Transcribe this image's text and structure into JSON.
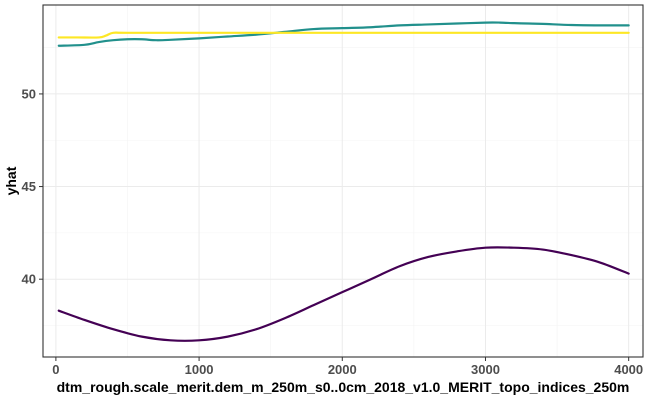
{
  "chart_data": {
    "type": "line",
    "xlabel": "dtm_rough.scale_merit.dem_m_250m_s0..0cm_2018_v1.0_MERIT_topo_indices_250m",
    "ylabel": "yhat",
    "xlim": [
      -90,
      4100
    ],
    "ylim": [
      35.8,
      54.8
    ],
    "x_ticks": [
      0,
      1000,
      2000,
      3000,
      4000
    ],
    "y_ticks": [
      40,
      45,
      50
    ],
    "grid": true,
    "legend": "none",
    "series": [
      {
        "color": "#440154",
        "x": [
          20,
          200,
          400,
          600,
          800,
          1000,
          1200,
          1400,
          1600,
          1800,
          2000,
          2200,
          2400,
          2600,
          2800,
          3000,
          3200,
          3400,
          3600,
          3800,
          4000
        ],
        "y": [
          38.3,
          37.8,
          37.3,
          36.9,
          36.7,
          36.7,
          36.9,
          37.3,
          37.9,
          38.6,
          39.3,
          40.0,
          40.7,
          41.2,
          41.5,
          41.7,
          41.7,
          41.6,
          41.3,
          40.9,
          40.3
        ]
      },
      {
        "color": "#21908C",
        "x": [
          20,
          200,
          300,
          400,
          500,
          600,
          700,
          800,
          1000,
          1200,
          1400,
          1600,
          1800,
          2000,
          2200,
          2400,
          2600,
          2800,
          3000,
          3100,
          3200,
          3300,
          3400,
          3600,
          3800,
          4000
        ],
        "y": [
          52.6,
          52.65,
          52.8,
          52.9,
          52.95,
          52.95,
          52.9,
          52.92,
          53.0,
          53.1,
          53.2,
          53.35,
          53.5,
          53.55,
          53.6,
          53.7,
          53.75,
          53.8,
          53.85,
          53.85,
          53.82,
          53.8,
          53.78,
          53.72,
          53.7,
          53.7
        ]
      },
      {
        "color": "#FDE725",
        "x": [
          20,
          150,
          300,
          350,
          400,
          500,
          1000,
          1500,
          2000,
          2500,
          3000,
          3500,
          4000
        ],
        "y": [
          53.05,
          53.05,
          53.05,
          53.15,
          53.3,
          53.3,
          53.3,
          53.3,
          53.3,
          53.3,
          53.3,
          53.3,
          53.3
        ]
      }
    ]
  }
}
